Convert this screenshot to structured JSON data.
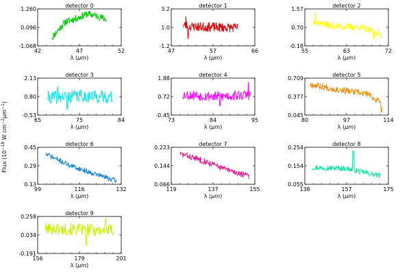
{
  "figure": {
    "ylabel_prefix": "Flux (10",
    "ylabel_exp1": "−18",
    "ylabel_mid": " W cm",
    "ylabel_exp2": "−2",
    "ylabel_mid2": "μm",
    "ylabel_exp3": "−1",
    "ylabel_suffix": ")"
  },
  "chart_data": [
    {
      "type": "line",
      "title": "detector 0",
      "xlabel": "λ (μm)",
      "xticks": [
        "42",
        "47",
        "52"
      ],
      "yticks": [
        "-1.068",
        "0.096",
        "1.260"
      ],
      "xlim": [
        42,
        52
      ],
      "ylim": [
        -1.068,
        1.26
      ],
      "color": "#00cc00",
      "x_range": [
        43.7,
        50.2
      ],
      "seed": 11,
      "trend": [
        [
          0,
          -0.55
        ],
        [
          0.12,
          -0.05
        ],
        [
          0.25,
          0.45
        ],
        [
          0.45,
          0.65
        ],
        [
          0.65,
          0.95
        ],
        [
          0.85,
          0.8
        ],
        [
          1,
          0.6
        ]
      ],
      "noise": 0.22,
      "spikes": []
    },
    {
      "type": "line",
      "title": "detector 1",
      "xlabel": "λ (μm)",
      "xticks": [
        "47",
        "57",
        "66"
      ],
      "yticks": [
        "-1.2",
        "1.0",
        "3.2"
      ],
      "xlim": [
        47,
        66
      ],
      "ylim": [
        -1.2,
        3.2
      ],
      "color": "#dd0000",
      "x_range": [
        49.7,
        62.2
      ],
      "seed": 23,
      "trend": [
        [
          0,
          1.3
        ],
        [
          0.15,
          1.1
        ],
        [
          1,
          0.95
        ]
      ],
      "noise": 0.55,
      "spikes": [
        [
          0.05,
          2.3
        ],
        [
          0.09,
          -0.3
        ]
      ]
    },
    {
      "type": "line",
      "title": "detector 2",
      "xlabel": "λ (μm)",
      "xticks": [
        "55",
        "63",
        "72"
      ],
      "yticks": [
        "-0.18",
        "0.70",
        "1.57"
      ],
      "xlim": [
        55,
        72
      ],
      "ylim": [
        -0.18,
        1.57
      ],
      "color": "#ffff00",
      "x_range": [
        56.8,
        70.6
      ],
      "seed": 37,
      "trend": [
        [
          0,
          0.95
        ],
        [
          0.3,
          0.75
        ],
        [
          0.7,
          0.7
        ],
        [
          1,
          0.35
        ]
      ],
      "noise": 0.16,
      "spikes": [
        [
          0.02,
          1.45
        ],
        [
          0.88,
          0.15
        ]
      ]
    },
    {
      "type": "line",
      "title": "detector 3",
      "xlabel": "λ (μm)",
      "xticks": [
        "65",
        "75",
        "84"
      ],
      "yticks": [
        "-0.53",
        "0.80",
        "2.13"
      ],
      "xlim": [
        65,
        84
      ],
      "ylim": [
        -0.53,
        2.13
      ],
      "color": "#00e8e8",
      "x_range": [
        67.3,
        82.0
      ],
      "seed": 41,
      "trend": [
        [
          0,
          0.72
        ],
        [
          0.5,
          0.85
        ],
        [
          1,
          0.75
        ]
      ],
      "noise": 0.45,
      "spikes": [
        [
          0.15,
          1.55
        ],
        [
          0.3,
          -0.1
        ]
      ]
    },
    {
      "type": "line",
      "title": "detector 4",
      "xlabel": "λ (μm)",
      "xticks": [
        "73",
        "84",
        "95"
      ],
      "yticks": [
        "-0.45",
        "0.72",
        "1.88"
      ],
      "xlim": [
        73,
        95
      ],
      "ylim": [
        -0.45,
        1.88
      ],
      "color": "#ff00ff",
      "x_range": [
        76.0,
        93.8
      ],
      "seed": 53,
      "trend": [
        [
          0,
          0.85
        ],
        [
          0.5,
          0.72
        ],
        [
          1,
          0.82
        ]
      ],
      "noise": 0.32,
      "spikes": [
        [
          0.97,
          1.6
        ],
        [
          0.55,
          0.15
        ]
      ]
    },
    {
      "type": "line",
      "title": "detector 5",
      "xlabel": "λ (μm)",
      "xticks": [
        "80",
        "97",
        "114"
      ],
      "yticks": [
        "0.045",
        "0.377",
        "0.709"
      ],
      "xlim": [
        80,
        114
      ],
      "ylim": [
        0.045,
        0.709
      ],
      "color": "#ee8800",
      "x_range": [
        82.0,
        111.5
      ],
      "seed": 67,
      "trend": [
        [
          0,
          0.6
        ],
        [
          0.4,
          0.5
        ],
        [
          0.8,
          0.42
        ],
        [
          1,
          0.25
        ]
      ],
      "noise": 0.06,
      "spikes": [
        [
          0.99,
          0.1
        ]
      ]
    },
    {
      "type": "line",
      "title": "detector 6",
      "xlabel": "λ (μm)",
      "xticks": [
        "99",
        "116",
        "132"
      ],
      "yticks": [
        "0.13",
        "0.29",
        "0.45"
      ],
      "xlim": [
        99,
        132
      ],
      "ylim": [
        0.13,
        0.45
      ],
      "color": "#0077dd",
      "x_range": [
        102.3,
        130.0
      ],
      "seed": 71,
      "trend": [
        [
          0,
          0.39
        ],
        [
          0.35,
          0.29
        ],
        [
          0.7,
          0.22
        ],
        [
          1,
          0.16
        ]
      ],
      "noise": 0.022,
      "spikes": []
    },
    {
      "type": "line",
      "title": "detector 7",
      "xlabel": "λ (μm)",
      "xticks": [
        "119",
        "137",
        "155"
      ],
      "yticks": [
        "0.066",
        "0.144",
        "0.223"
      ],
      "xlim": [
        119,
        155
      ],
      "ylim": [
        0.066,
        0.223
      ],
      "color": "#ee0088",
      "x_range": [
        122.8,
        152.5
      ],
      "seed": 83,
      "trend": [
        [
          0,
          0.195
        ],
        [
          0.3,
          0.17
        ],
        [
          0.7,
          0.125
        ],
        [
          1,
          0.1
        ]
      ],
      "noise": 0.013,
      "spikes": []
    },
    {
      "type": "line",
      "title": "detector 8",
      "xlabel": "λ (μm)",
      "xticks": [
        "138",
        "157",
        "175"
      ],
      "yticks": [
        "0.055",
        "0.154",
        "0.254"
      ],
      "xlim": [
        138,
        175
      ],
      "ylim": [
        0.055,
        0.254
      ],
      "color": "#00e5a0",
      "x_range": [
        141.3,
        171.4
      ],
      "seed": 97,
      "trend": [
        [
          0,
          0.145
        ],
        [
          0.5,
          0.14
        ],
        [
          1,
          0.1
        ]
      ],
      "noise": 0.014,
      "spikes": [
        [
          0.6,
          0.235
        ],
        [
          0.61,
          0.2
        ]
      ]
    },
    {
      "type": "line",
      "title": "detector 9",
      "xlabel": "λ (μm)",
      "xticks": [
        "156",
        "179",
        "201"
      ],
      "yticks": [
        "-0.191",
        "0.034",
        "0.258"
      ],
      "xlim": [
        156,
        201
      ],
      "ylim": [
        -0.191,
        0.258
      ],
      "color": "#ccee00",
      "x_range": [
        160.0,
        197.0
      ],
      "seed": 101,
      "trend": [
        [
          0,
          0.11
        ],
        [
          0.5,
          0.1
        ],
        [
          1,
          0.09
        ]
      ],
      "noise": 0.075,
      "spikes": [
        [
          0.88,
          0.23
        ],
        [
          0.6,
          -0.09
        ]
      ]
    }
  ]
}
